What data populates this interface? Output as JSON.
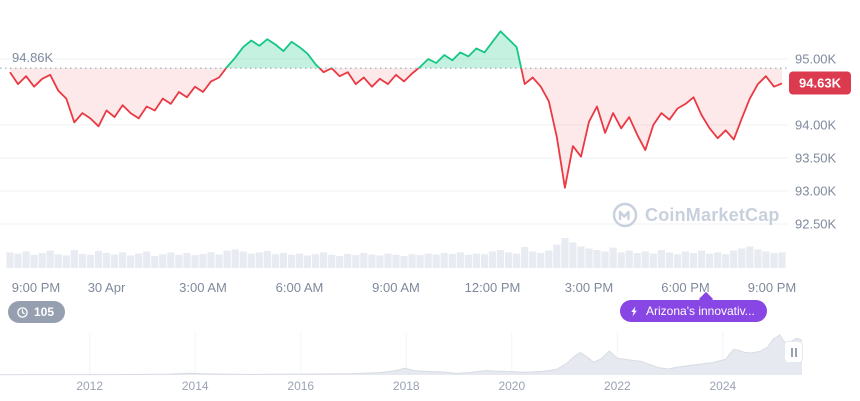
{
  "colors": {
    "green": "#16c784",
    "green_fill": "rgba(22,199,132,0.25)",
    "red": "#ea3943",
    "red_fill": "rgba(234,57,67,0.11)",
    "badge_bg": "#dc3a4f",
    "grid": "#eff2f5",
    "axis_text": "#7f8a9d",
    "baseline_dot": "#b6bfcc",
    "volume_bar": "#e8ebf1",
    "mini_fill": "#e6e9ef",
    "mini_stroke": "#d8dce4",
    "purple": "#8846e4",
    "watermark": "#c9d0dd"
  },
  "watermark": {
    "text": "CoinMarketCap"
  },
  "pills": {
    "history_count": "105",
    "news_text": "Arizona's innovativ..."
  },
  "icons": {
    "history_pill": "clock-history-icon",
    "news_pill": "lightning-bolt-icon",
    "pause_button": "pause-icon",
    "watermark": "coinmarketcap-logo-icon"
  },
  "chart_data": [
    {
      "type": "line",
      "x_unit": "hours_from_start",
      "x_range": [
        0,
        24
      ],
      "interval_hours": 0.25,
      "baseline": {
        "value": 94.86,
        "label": "94.86K"
      },
      "current": {
        "value": 94.63,
        "label": "94.63K"
      },
      "y_ticks": [
        {
          "value": 95.0,
          "label": "95.00K"
        },
        {
          "value": 94.0,
          "label": "94.00K"
        },
        {
          "value": 93.5,
          "label": "93.50K"
        },
        {
          "value": 93.0,
          "label": "93.00K"
        },
        {
          "value": 92.5,
          "label": "92.50K"
        }
      ],
      "x_ticks": [
        {
          "t": 0,
          "label": "9:00 PM"
        },
        {
          "t": 3,
          "label": "30 Apr"
        },
        {
          "t": 6,
          "label": "3:00 AM"
        },
        {
          "t": 9,
          "label": "6:00 AM"
        },
        {
          "t": 12,
          "label": "9:00 AM"
        },
        {
          "t": 15,
          "label": "12:00 PM"
        },
        {
          "t": 18,
          "label": "3:00 PM"
        },
        {
          "t": 21,
          "label": "6:00 PM"
        },
        {
          "t": 24,
          "label": "9:00 PM"
        }
      ],
      "prices": [
        94.8,
        94.62,
        94.74,
        94.58,
        94.7,
        94.76,
        94.52,
        94.4,
        94.04,
        94.18,
        94.1,
        93.98,
        94.22,
        94.12,
        94.3,
        94.18,
        94.1,
        94.28,
        94.22,
        94.4,
        94.32,
        94.5,
        94.42,
        94.58,
        94.5,
        94.66,
        94.72,
        94.88,
        95.02,
        95.18,
        95.28,
        95.2,
        95.3,
        95.22,
        95.12,
        95.26,
        95.18,
        95.08,
        94.92,
        94.8,
        94.86,
        94.74,
        94.8,
        94.62,
        94.72,
        94.58,
        94.7,
        94.62,
        94.76,
        94.66,
        94.78,
        94.88,
        95.0,
        94.94,
        95.06,
        94.98,
        95.1,
        95.04,
        95.16,
        95.1,
        95.26,
        95.42,
        95.3,
        95.18,
        94.62,
        94.72,
        94.58,
        94.36,
        93.82,
        93.05,
        93.68,
        93.52,
        94.05,
        94.28,
        93.88,
        94.18,
        93.95,
        94.12,
        93.85,
        93.62,
        94.0,
        94.18,
        94.08,
        94.25,
        94.32,
        94.42,
        94.15,
        93.95,
        93.8,
        93.92,
        93.78,
        94.1,
        94.4,
        94.62,
        94.74,
        94.58,
        94.63
      ],
      "volume": [
        52,
        48,
        55,
        44,
        50,
        58,
        46,
        42,
        60,
        47,
        44,
        57,
        50,
        45,
        52,
        42,
        48,
        55,
        40,
        46,
        52,
        44,
        50,
        43,
        47,
        53,
        45,
        58,
        62,
        55,
        48,
        52,
        57,
        46,
        50,
        44,
        48,
        42,
        46,
        52,
        44,
        40,
        47,
        43,
        50,
        45,
        42,
        48,
        44,
        40,
        46,
        43,
        48,
        45,
        50,
        47,
        52,
        44,
        48,
        46,
        55,
        60,
        52,
        48,
        70,
        55,
        50,
        58,
        78,
        100,
        85,
        72,
        65,
        60,
        55,
        68,
        52,
        58,
        50,
        55,
        48,
        60,
        52,
        46,
        55,
        50,
        58,
        48,
        52,
        46,
        58,
        65,
        72,
        62,
        55,
        50,
        52
      ]
    },
    {
      "type": "area",
      "x_unit": "year",
      "x_range": [
        2010.3,
        2025.5
      ],
      "x_ticks": [
        {
          "year": 2012,
          "label": "2012"
        },
        {
          "year": 2014,
          "label": "2014"
        },
        {
          "year": 2016,
          "label": "2016"
        },
        {
          "year": 2018,
          "label": "2018"
        },
        {
          "year": 2020,
          "label": "2020"
        },
        {
          "year": 2022,
          "label": "2022"
        },
        {
          "year": 2024,
          "label": "2024"
        }
      ],
      "value_scale": "relative_0_100",
      "points": [
        [
          2010.3,
          0.8
        ],
        [
          2011,
          0.9
        ],
        [
          2011.5,
          1.0
        ],
        [
          2012,
          1.0
        ],
        [
          2012.5,
          1.1
        ],
        [
          2013,
          1.6
        ],
        [
          2013.5,
          2.2
        ],
        [
          2013.92,
          4.5
        ],
        [
          2014.15,
          3.2
        ],
        [
          2014.5,
          2.2
        ],
        [
          2015,
          1.6
        ],
        [
          2015.5,
          1.7
        ],
        [
          2016,
          2.2
        ],
        [
          2016.5,
          2.8
        ],
        [
          2017,
          3.6
        ],
        [
          2017.5,
          6
        ],
        [
          2017.8,
          11
        ],
        [
          2017.97,
          17
        ],
        [
          2018.15,
          11
        ],
        [
          2018.4,
          9
        ],
        [
          2018.7,
          7.5
        ],
        [
          2018.95,
          4
        ],
        [
          2019.2,
          6
        ],
        [
          2019.5,
          11
        ],
        [
          2019.75,
          9.5
        ],
        [
          2020,
          8.5
        ],
        [
          2020.25,
          6.5
        ],
        [
          2020.6,
          9.5
        ],
        [
          2020.85,
          14
        ],
        [
          2021.05,
          30
        ],
        [
          2021.2,
          48
        ],
        [
          2021.3,
          56
        ],
        [
          2021.45,
          43
        ],
        [
          2021.55,
          32
        ],
        [
          2021.7,
          41
        ],
        [
          2021.85,
          60
        ],
        [
          2022,
          42
        ],
        [
          2022.2,
          38
        ],
        [
          2022.45,
          34
        ],
        [
          2022.6,
          27
        ],
        [
          2022.8,
          18
        ],
        [
          2022.95,
          15
        ],
        [
          2023.2,
          21
        ],
        [
          2023.5,
          26
        ],
        [
          2023.8,
          31
        ],
        [
          2024.05,
          39
        ],
        [
          2024.2,
          64
        ],
        [
          2024.3,
          62
        ],
        [
          2024.4,
          57
        ],
        [
          2024.55,
          55
        ],
        [
          2024.7,
          59
        ],
        [
          2024.85,
          70
        ],
        [
          2024.95,
          89
        ],
        [
          2025.02,
          95
        ],
        [
          2025.08,
          100
        ],
        [
          2025.15,
          86
        ],
        [
          2025.22,
          76
        ],
        [
          2025.3,
          84
        ],
        [
          2025.4,
          92
        ],
        [
          2025.5,
          87
        ]
      ]
    }
  ]
}
